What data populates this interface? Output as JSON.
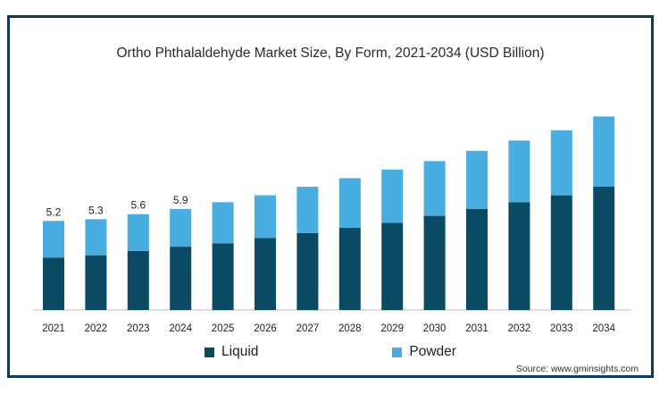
{
  "chart_data": {
    "type": "bar",
    "stacked": true,
    "title": "Ortho Phthalaldehyde Market Size, By Form, 2021-2034 (USD Billion)",
    "categories": [
      "2021",
      "2022",
      "2023",
      "2024",
      "2025",
      "2026",
      "2027",
      "2028",
      "2029",
      "2030",
      "2031",
      "2032",
      "2033",
      "2034"
    ],
    "series": [
      {
        "name": "Liquid",
        "color": "#0b4a63",
        "values": [
          3.05,
          3.2,
          3.45,
          3.7,
          3.9,
          4.2,
          4.5,
          4.8,
          5.1,
          5.5,
          5.9,
          6.3,
          6.7,
          7.2
        ]
      },
      {
        "name": "Powder",
        "color": "#49ade0",
        "values": [
          2.15,
          2.1,
          2.15,
          2.2,
          2.4,
          2.5,
          2.7,
          2.9,
          3.1,
          3.2,
          3.4,
          3.6,
          3.8,
          4.1
        ]
      }
    ],
    "data_labels": [
      "5.2",
      "5.3",
      "5.6",
      "5.9",
      "",
      "",
      "",
      "",
      "",
      "",
      "",
      "",
      "",
      ""
    ],
    "ylim": [
      0,
      12
    ],
    "grid": false,
    "legend_position": "bottom",
    "source": "Source: www.gminsights.com"
  }
}
